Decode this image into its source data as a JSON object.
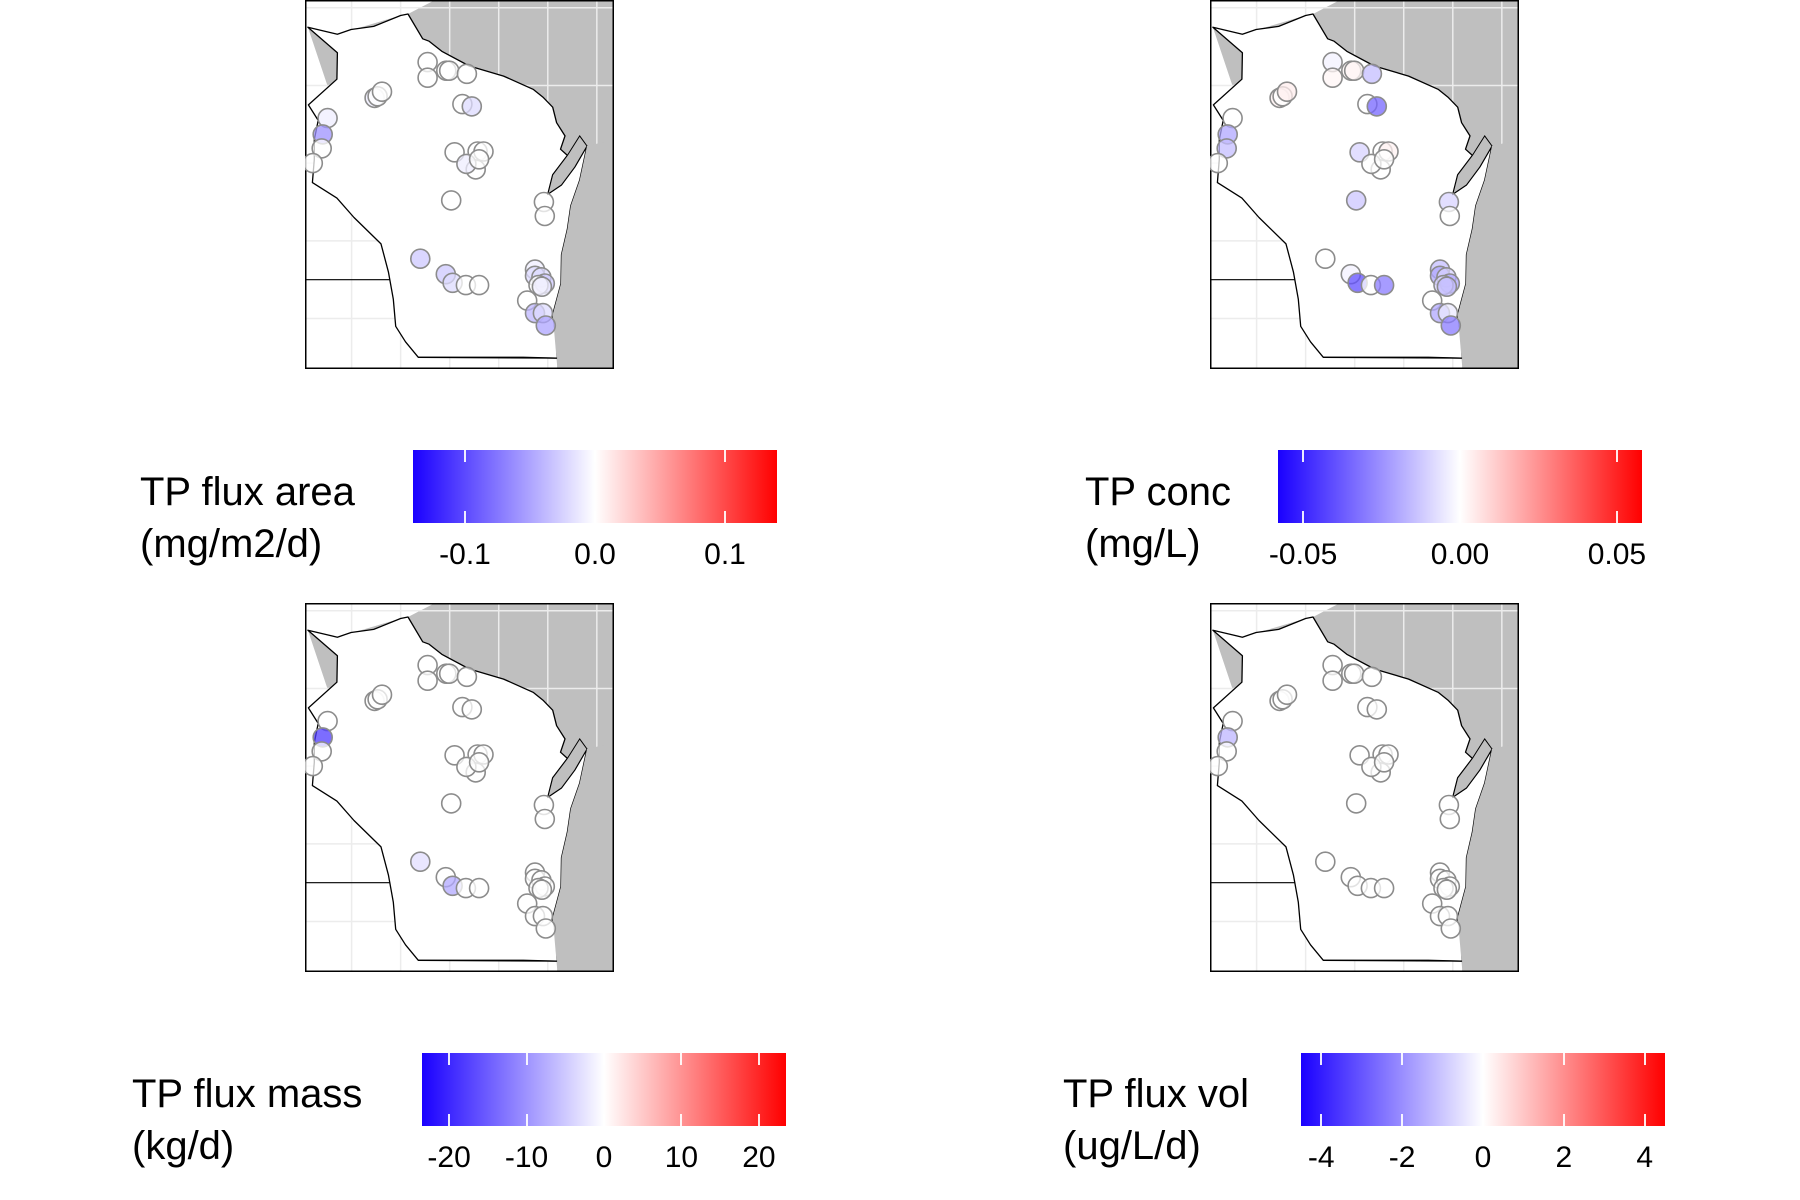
{
  "panels": [
    {
      "id": "flux-area",
      "legend_title": [
        "TP flux area",
        "(mg/m2/d)"
      ],
      "scale": {
        "min": -0.14,
        "max": 0.14,
        "ticks": [
          -0.1,
          0.0,
          0.1
        ],
        "tick_labels": [
          "-0.1",
          "0.0",
          "0.1"
        ]
      },
      "sites": [
        {
          "lon": -92.49,
          "lat": 45.58,
          "v": -0.01
        },
        {
          "lon": -92.59,
          "lat": 45.37,
          "v": -0.06
        },
        {
          "lon": -92.61,
          "lat": 45.19,
          "v": 0.0
        },
        {
          "lon": -92.79,
          "lat": 45.0,
          "v": 0.0
        },
        {
          "lon": -91.53,
          "lat": 45.84,
          "v": -0.01
        },
        {
          "lon": -91.47,
          "lat": 45.86,
          "v": 0.0
        },
        {
          "lon": -91.38,
          "lat": 45.92,
          "v": 0.0
        },
        {
          "lon": -90.45,
          "lat": 46.3,
          "v": 0.0
        },
        {
          "lon": -90.45,
          "lat": 46.1,
          "v": 0.0
        },
        {
          "lon": -90.07,
          "lat": 46.19,
          "v": 0.0
        },
        {
          "lon": -90.01,
          "lat": 46.19,
          "v": 0.0
        },
        {
          "lon": -89.65,
          "lat": 46.15,
          "v": 0.0
        },
        {
          "lon": -89.74,
          "lat": 45.76,
          "v": 0.0
        },
        {
          "lon": -89.55,
          "lat": 45.73,
          "v": -0.02
        },
        {
          "lon": -89.9,
          "lat": 45.14,
          "v": 0.0
        },
        {
          "lon": -89.43,
          "lat": 45.15,
          "v": 0.0
        },
        {
          "lon": -89.31,
          "lat": 45.15,
          "v": 0.0
        },
        {
          "lon": -89.47,
          "lat": 44.92,
          "v": 0.0
        },
        {
          "lon": -89.66,
          "lat": 44.99,
          "v": -0.01
        },
        {
          "lon": -89.4,
          "lat": 45.05,
          "v": 0.0
        },
        {
          "lon": -89.97,
          "lat": 44.52,
          "v": 0.0
        },
        {
          "lon": -88.08,
          "lat": 44.5,
          "v": 0.0
        },
        {
          "lon": -88.06,
          "lat": 44.32,
          "v": 0.0
        },
        {
          "lon": -90.6,
          "lat": 43.77,
          "v": -0.03
        },
        {
          "lon": -90.08,
          "lat": 43.57,
          "v": -0.03
        },
        {
          "lon": -89.94,
          "lat": 43.46,
          "v": -0.02
        },
        {
          "lon": -89.67,
          "lat": 43.43,
          "v": 0.0
        },
        {
          "lon": -89.4,
          "lat": 43.43,
          "v": 0.0
        },
        {
          "lon": -88.26,
          "lat": 43.63,
          "v": -0.01
        },
        {
          "lon": -88.26,
          "lat": 43.55,
          "v": -0.02
        },
        {
          "lon": -88.13,
          "lat": 43.53,
          "v": -0.02
        },
        {
          "lon": -88.06,
          "lat": 43.45,
          "v": -0.03
        },
        {
          "lon": -88.19,
          "lat": 43.43,
          "v": 0.0
        },
        {
          "lon": -88.12,
          "lat": 43.41,
          "v": -0.01
        },
        {
          "lon": -88.42,
          "lat": 43.23,
          "v": 0.0
        },
        {
          "lon": -88.26,
          "lat": 43.07,
          "v": -0.04
        },
        {
          "lon": -88.1,
          "lat": 43.07,
          "v": -0.02
        },
        {
          "lon": -88.04,
          "lat": 42.91,
          "v": -0.05
        }
      ]
    },
    {
      "id": "conc",
      "legend_title": [
        "TP conc",
        "(mg/L)"
      ],
      "scale": {
        "min": -0.058,
        "max": 0.058,
        "ticks": [
          -0.05,
          0.0,
          0.05
        ],
        "tick_labels": [
          "-0.05",
          "0.00",
          "0.05"
        ]
      },
      "sites": [
        {
          "lon": -92.49,
          "lat": 45.58,
          "v": 0.0
        },
        {
          "lon": -92.59,
          "lat": 45.37,
          "v": -0.02
        },
        {
          "lon": -92.61,
          "lat": 45.19,
          "v": -0.015
        },
        {
          "lon": -92.79,
          "lat": 45.0,
          "v": 0.0
        },
        {
          "lon": -91.53,
          "lat": 45.84,
          "v": 0.003
        },
        {
          "lon": -91.47,
          "lat": 45.86,
          "v": 0.0
        },
        {
          "lon": -91.38,
          "lat": 45.92,
          "v": 0.004
        },
        {
          "lon": -90.45,
          "lat": 46.3,
          "v": -0.003
        },
        {
          "lon": -90.45,
          "lat": 46.1,
          "v": 0.002
        },
        {
          "lon": -90.07,
          "lat": 46.19,
          "v": 0.002
        },
        {
          "lon": -90.01,
          "lat": 46.19,
          "v": 0.002
        },
        {
          "lon": -89.65,
          "lat": 46.15,
          "v": -0.015
        },
        {
          "lon": -89.74,
          "lat": 45.76,
          "v": 0.0
        },
        {
          "lon": -89.55,
          "lat": 45.73,
          "v": -0.035
        },
        {
          "lon": -89.9,
          "lat": 45.14,
          "v": -0.01
        },
        {
          "lon": -89.43,
          "lat": 45.15,
          "v": 0.0
        },
        {
          "lon": -89.31,
          "lat": 45.15,
          "v": 0.003
        },
        {
          "lon": -89.47,
          "lat": 44.92,
          "v": 0.0
        },
        {
          "lon": -89.66,
          "lat": 44.99,
          "v": 0.0
        },
        {
          "lon": -89.4,
          "lat": 45.05,
          "v": 0.0
        },
        {
          "lon": -89.97,
          "lat": 44.52,
          "v": -0.013
        },
        {
          "lon": -88.08,
          "lat": 44.5,
          "v": -0.01
        },
        {
          "lon": -88.06,
          "lat": 44.32,
          "v": 0.0
        },
        {
          "lon": -90.6,
          "lat": 43.77,
          "v": 0.0
        },
        {
          "lon": -90.08,
          "lat": 43.57,
          "v": -0.003
        },
        {
          "lon": -89.94,
          "lat": 43.46,
          "v": -0.04
        },
        {
          "lon": -89.67,
          "lat": 43.43,
          "v": 0.0
        },
        {
          "lon": -89.4,
          "lat": 43.43,
          "v": -0.03
        },
        {
          "lon": -88.26,
          "lat": 43.63,
          "v": -0.015
        },
        {
          "lon": -88.26,
          "lat": 43.55,
          "v": -0.02
        },
        {
          "lon": -88.13,
          "lat": 43.53,
          "v": -0.01
        },
        {
          "lon": -88.06,
          "lat": 43.45,
          "v": -0.02
        },
        {
          "lon": -88.19,
          "lat": 43.43,
          "v": -0.01
        },
        {
          "lon": -88.12,
          "lat": 43.41,
          "v": -0.015
        },
        {
          "lon": -88.42,
          "lat": 43.23,
          "v": 0.0
        },
        {
          "lon": -88.26,
          "lat": 43.07,
          "v": -0.02
        },
        {
          "lon": -88.1,
          "lat": 43.07,
          "v": -0.005
        },
        {
          "lon": -88.04,
          "lat": 42.91,
          "v": -0.03
        }
      ]
    },
    {
      "id": "flux-mass",
      "legend_title": [
        "TP flux mass",
        "(kg/d)"
      ],
      "scale": {
        "min": -23.5,
        "max": 23.5,
        "ticks": [
          -20,
          -10,
          0,
          10,
          20
        ],
        "tick_labels": [
          "-20",
          "-10",
          "0",
          "10",
          "20"
        ]
      },
      "sites": [
        {
          "lon": -92.49,
          "lat": 45.58,
          "v": 0.0
        },
        {
          "lon": -92.59,
          "lat": 45.37,
          "v": -18
        },
        {
          "lon": -92.61,
          "lat": 45.19,
          "v": 0.0
        },
        {
          "lon": -92.79,
          "lat": 45.0,
          "v": 0.0
        },
        {
          "lon": -91.53,
          "lat": 45.84,
          "v": 0.0
        },
        {
          "lon": -91.47,
          "lat": 45.86,
          "v": 0.0
        },
        {
          "lon": -91.38,
          "lat": 45.92,
          "v": 0.0
        },
        {
          "lon": -90.45,
          "lat": 46.3,
          "v": 0.0
        },
        {
          "lon": -90.45,
          "lat": 46.1,
          "v": 0.0
        },
        {
          "lon": -90.07,
          "lat": 46.19,
          "v": 0.0
        },
        {
          "lon": -90.01,
          "lat": 46.19,
          "v": 0.0
        },
        {
          "lon": -89.65,
          "lat": 46.15,
          "v": 0.0
        },
        {
          "lon": -89.74,
          "lat": 45.76,
          "v": 0.0
        },
        {
          "lon": -89.55,
          "lat": 45.73,
          "v": 0.0
        },
        {
          "lon": -89.9,
          "lat": 45.14,
          "v": 0.0
        },
        {
          "lon": -89.43,
          "lat": 45.15,
          "v": 0.0
        },
        {
          "lon": -89.31,
          "lat": 45.15,
          "v": 0.0
        },
        {
          "lon": -89.47,
          "lat": 44.92,
          "v": 0.0
        },
        {
          "lon": -89.66,
          "lat": 44.99,
          "v": 0.0
        },
        {
          "lon": -89.4,
          "lat": 45.05,
          "v": 0.0
        },
        {
          "lon": -89.97,
          "lat": 44.52,
          "v": 0.0
        },
        {
          "lon": -88.08,
          "lat": 44.5,
          "v": 0.0
        },
        {
          "lon": -88.06,
          "lat": 44.32,
          "v": 0.0
        },
        {
          "lon": -90.6,
          "lat": 43.77,
          "v": -3
        },
        {
          "lon": -90.08,
          "lat": 43.57,
          "v": 0.0
        },
        {
          "lon": -89.94,
          "lat": 43.46,
          "v": -8
        },
        {
          "lon": -89.67,
          "lat": 43.43,
          "v": 0.0
        },
        {
          "lon": -89.4,
          "lat": 43.43,
          "v": 0.0
        },
        {
          "lon": -88.26,
          "lat": 43.63,
          "v": 0.0
        },
        {
          "lon": -88.26,
          "lat": 43.55,
          "v": 0.0
        },
        {
          "lon": -88.13,
          "lat": 43.53,
          "v": 0.0
        },
        {
          "lon": -88.06,
          "lat": 43.45,
          "v": 0.0
        },
        {
          "lon": -88.19,
          "lat": 43.43,
          "v": 0.0
        },
        {
          "lon": -88.12,
          "lat": 43.41,
          "v": 0.0
        },
        {
          "lon": -88.42,
          "lat": 43.23,
          "v": 0.0
        },
        {
          "lon": -88.26,
          "lat": 43.07,
          "v": 0.0
        },
        {
          "lon": -88.1,
          "lat": 43.07,
          "v": 0.0
        },
        {
          "lon": -88.04,
          "lat": 42.91,
          "v": 0.0
        }
      ]
    },
    {
      "id": "flux-vol",
      "legend_title": [
        "TP flux vol",
        "(ug/L/d)"
      ],
      "scale": {
        "min": -4.5,
        "max": 4.5,
        "ticks": [
          -4,
          -2,
          0,
          2,
          4
        ],
        "tick_labels": [
          "-4",
          "-2",
          "0",
          "2",
          "4"
        ]
      },
      "sites": [
        {
          "lon": -92.49,
          "lat": 45.58,
          "v": 0.0
        },
        {
          "lon": -92.59,
          "lat": 45.37,
          "v": -1.3
        },
        {
          "lon": -92.61,
          "lat": 45.19,
          "v": 0.0
        },
        {
          "lon": -92.79,
          "lat": 45.0,
          "v": 0.0
        },
        {
          "lon": -91.53,
          "lat": 45.84,
          "v": 0.0
        },
        {
          "lon": -91.47,
          "lat": 45.86,
          "v": 0.0
        },
        {
          "lon": -91.38,
          "lat": 45.92,
          "v": 0.0
        },
        {
          "lon": -90.45,
          "lat": 46.3,
          "v": 0.0
        },
        {
          "lon": -90.45,
          "lat": 46.1,
          "v": 0.0
        },
        {
          "lon": -90.07,
          "lat": 46.19,
          "v": 0.0
        },
        {
          "lon": -90.01,
          "lat": 46.19,
          "v": 0.0
        },
        {
          "lon": -89.65,
          "lat": 46.15,
          "v": 0.0
        },
        {
          "lon": -89.74,
          "lat": 45.76,
          "v": 0.0
        },
        {
          "lon": -89.55,
          "lat": 45.73,
          "v": 0.0
        },
        {
          "lon": -89.9,
          "lat": 45.14,
          "v": 0.0
        },
        {
          "lon": -89.43,
          "lat": 45.15,
          "v": 0.0
        },
        {
          "lon": -89.31,
          "lat": 45.15,
          "v": 0.0
        },
        {
          "lon": -89.47,
          "lat": 44.92,
          "v": 0.0
        },
        {
          "lon": -89.66,
          "lat": 44.99,
          "v": 0.0
        },
        {
          "lon": -89.4,
          "lat": 45.05,
          "v": 0.0
        },
        {
          "lon": -89.97,
          "lat": 44.52,
          "v": 0.0
        },
        {
          "lon": -88.08,
          "lat": 44.5,
          "v": 0.0
        },
        {
          "lon": -88.06,
          "lat": 44.32,
          "v": 0.0
        },
        {
          "lon": -90.6,
          "lat": 43.77,
          "v": 0.0
        },
        {
          "lon": -90.08,
          "lat": 43.57,
          "v": 0.0
        },
        {
          "lon": -89.94,
          "lat": 43.46,
          "v": 0.0
        },
        {
          "lon": -89.67,
          "lat": 43.43,
          "v": 0.0
        },
        {
          "lon": -89.4,
          "lat": 43.43,
          "v": 0.0
        },
        {
          "lon": -88.26,
          "lat": 43.63,
          "v": 0.0
        },
        {
          "lon": -88.26,
          "lat": 43.55,
          "v": 0.0
        },
        {
          "lon": -88.13,
          "lat": 43.53,
          "v": 0.0
        },
        {
          "lon": -88.06,
          "lat": 43.45,
          "v": 0.0
        },
        {
          "lon": -88.19,
          "lat": 43.43,
          "v": 0.0
        },
        {
          "lon": -88.12,
          "lat": 43.41,
          "v": 0.0
        },
        {
          "lon": -88.42,
          "lat": 43.23,
          "v": 0.0
        },
        {
          "lon": -88.26,
          "lat": 43.07,
          "v": 0.0
        },
        {
          "lon": -88.1,
          "lat": 43.07,
          "v": 0.0
        },
        {
          "lon": -88.04,
          "lat": 42.91,
          "v": 0.0
        }
      ]
    }
  ],
  "colors": {
    "low": "#1a00ff",
    "mid": "#ffffff",
    "high": "#ff0000",
    "land": "#ffffff",
    "outside": "#bfbfbf",
    "graticule": "#ececec",
    "border": "#000000",
    "marker_stroke": "#8c8c8c"
  }
}
